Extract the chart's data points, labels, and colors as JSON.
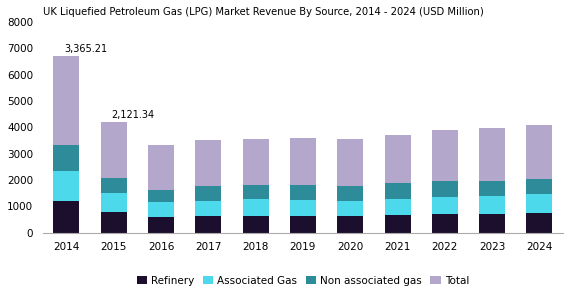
{
  "title": "UK Liquefied Petroleum Gas (LPG) Market Revenue By Source, 2014 - 2024 (USD Million)",
  "years": [
    2014,
    2015,
    2016,
    2017,
    2018,
    2019,
    2020,
    2021,
    2022,
    2023,
    2024
  ],
  "refinery": [
    1200,
    780,
    580,
    610,
    640,
    630,
    610,
    670,
    690,
    720,
    740
  ],
  "associated_gas": [
    1150,
    720,
    570,
    590,
    620,
    610,
    600,
    620,
    660,
    680,
    710
  ],
  "non_associated": [
    980,
    580,
    480,
    550,
    560,
    560,
    540,
    580,
    590,
    570,
    580
  ],
  "total_segment": [
    3365.21,
    2121.34,
    1700,
    1750,
    1750,
    1800,
    1800,
    1850,
    1950,
    2000,
    2050
  ],
  "annotations": {
    "idx_2014": 0,
    "idx_2015": 1,
    "label_2014": "3,365.21",
    "label_2015": "2,121.34"
  },
  "colors": {
    "refinery": "#1c0f2e",
    "associated_gas": "#4dd9ec",
    "non_associated": "#2e8b9a",
    "total": "#b3a8cc"
  },
  "ylim": [
    0,
    8000
  ],
  "yticks": [
    0,
    1000,
    2000,
    3000,
    4000,
    5000,
    6000,
    7000,
    8000
  ],
  "legend_labels": [
    "Refinery",
    "Associated Gas",
    "Non associated gas",
    "Total"
  ],
  "background_color": "#ffffff"
}
